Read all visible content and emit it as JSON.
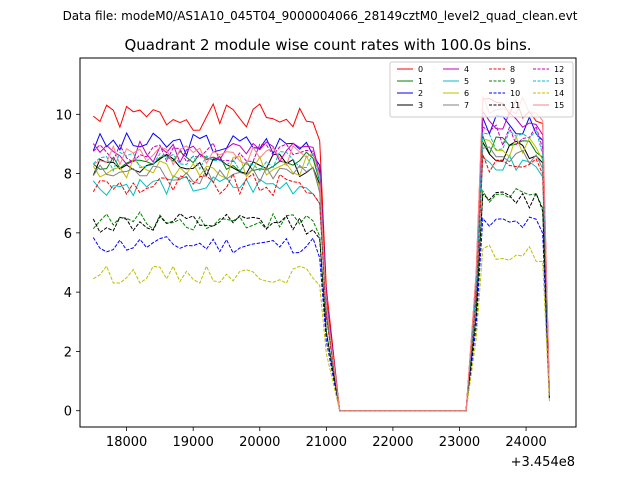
{
  "figure": {
    "suptitle": "Data file: modeM0/AS1A10_045T04_9000004066_28149cztM0_level2_quad_clean.evt"
  },
  "chart_data": {
    "type": "line",
    "title": "Quadrant 2 module wise count rates with 100.0s bins.",
    "xlabel": "",
    "ylabel": "",
    "x_offset_label": "+3.454e8",
    "xlim": [
      17300,
      24750
    ],
    "ylim": [
      -0.55,
      11.9
    ],
    "xticks": [
      18000,
      19000,
      20000,
      21000,
      22000,
      23000,
      24000
    ],
    "xtick_labels": [
      "18000",
      "19000",
      "20000",
      "21000",
      "22000",
      "23000",
      "24000"
    ],
    "yticks": [
      0,
      2,
      4,
      6,
      8,
      10
    ],
    "ytick_labels": [
      "0",
      "2",
      "4",
      "6",
      "8",
      "10"
    ],
    "legend_position": "top-right",
    "x_segments": [
      {
        "start": 17500,
        "step": 100,
        "count": 36
      },
      {
        "start": 21200,
        "step": 100,
        "count": 20
      },
      {
        "start": 23250,
        "step": 100,
        "count": 12
      }
    ],
    "series": [
      {
        "name": "0",
        "color": "#ff0000",
        "dash": "solid",
        "level": 9.9,
        "spread": 0.45,
        "seed": 1,
        "post": 10.2
      },
      {
        "name": "1",
        "color": "#008000",
        "dash": "solid",
        "level": 8.4,
        "spread": 0.35,
        "seed": 2,
        "post": 9.0
      },
      {
        "name": "2",
        "color": "#0000ff",
        "dash": "solid",
        "level": 9.0,
        "spread": 0.4,
        "seed": 3,
        "post": 9.6
      },
      {
        "name": "3",
        "color": "#000000",
        "dash": "solid",
        "level": 8.3,
        "spread": 0.4,
        "seed": 4,
        "post": 8.8
      },
      {
        "name": "4",
        "color": "#bf00bf",
        "dash": "solid",
        "level": 8.7,
        "spread": 0.4,
        "seed": 5,
        "post": 9.8
      },
      {
        "name": "5",
        "color": "#00bfbf",
        "dash": "solid",
        "level": 7.6,
        "spread": 0.35,
        "seed": 6,
        "post": 8.3
      },
      {
        "name": "6",
        "color": "#bfbf00",
        "dash": "solid",
        "level": 8.2,
        "spread": 0.4,
        "seed": 7,
        "post": 8.9
      },
      {
        "name": "7",
        "color": "#808080",
        "dash": "solid",
        "level": 8.0,
        "spread": 0.35,
        "seed": 8,
        "post": 8.6
      },
      {
        "name": "8",
        "color": "#ff0000",
        "dash": "dashed",
        "level": 7.6,
        "spread": 0.4,
        "seed": 9,
        "post": 8.4
      },
      {
        "name": "9",
        "color": "#008000",
        "dash": "dashed",
        "level": 6.4,
        "spread": 0.3,
        "seed": 10,
        "post": 7.2
      },
      {
        "name": "10",
        "color": "#0000ff",
        "dash": "dashed",
        "level": 5.6,
        "spread": 0.3,
        "seed": 11,
        "post": 6.3
      },
      {
        "name": "11",
        "color": "#000000",
        "dash": "dashed",
        "level": 6.3,
        "spread": 0.35,
        "seed": 12,
        "post": 7.1
      },
      {
        "name": "12",
        "color": "#bf00bf",
        "dash": "dashed",
        "level": 8.7,
        "spread": 0.35,
        "seed": 13,
        "post": 9.3
      },
      {
        "name": "13",
        "color": "#00bfbf",
        "dash": "dashed",
        "level": 8.4,
        "spread": 0.35,
        "seed": 14,
        "post": 9.1
      },
      {
        "name": "14",
        "color": "#bfbf00",
        "dash": "dashed",
        "level": 4.6,
        "spread": 0.3,
        "seed": 15,
        "post": 5.3
      },
      {
        "name": "15",
        "color": "#ff8080",
        "dash": "solid",
        "level": 8.6,
        "spread": 0.35,
        "seed": 16,
        "post": 10.3
      }
    ]
  }
}
